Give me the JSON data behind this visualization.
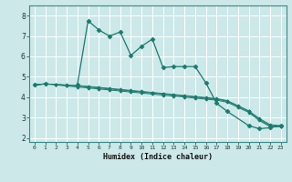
{
  "xlabel": "Humidex (Indice chaleur)",
  "background_color": "#cce8e8",
  "grid_color": "#ffffff",
  "line_color": "#1a7a6e",
  "xlim": [
    -0.5,
    23.5
  ],
  "ylim": [
    1.8,
    8.5
  ],
  "xticks": [
    0,
    1,
    2,
    3,
    4,
    5,
    6,
    7,
    8,
    9,
    10,
    11,
    12,
    13,
    14,
    15,
    16,
    17,
    18,
    19,
    20,
    21,
    22,
    23
  ],
  "yticks": [
    2,
    3,
    4,
    5,
    6,
    7,
    8
  ],
  "series1_x": [
    0,
    1,
    2,
    3,
    4,
    5,
    6,
    7,
    8,
    9,
    10,
    11,
    12,
    13,
    14,
    15,
    16,
    17,
    18,
    20,
    21,
    22,
    23
  ],
  "series1_y": [
    4.6,
    4.65,
    null,
    null,
    4.6,
    7.75,
    7.3,
    7.0,
    7.2,
    6.05,
    6.5,
    6.85,
    5.45,
    5.5,
    5.5,
    5.5,
    4.7,
    3.7,
    3.3,
    2.6,
    2.45,
    2.5,
    2.6
  ],
  "series2_x": [
    0,
    1,
    2,
    3,
    4,
    5,
    6,
    7,
    8,
    9,
    10,
    11,
    12,
    13,
    14,
    15,
    16,
    17,
    18,
    19,
    20,
    21,
    22,
    23
  ],
  "series2_y": [
    4.6,
    4.65,
    4.6,
    4.55,
    4.5,
    4.45,
    4.4,
    4.35,
    4.3,
    4.25,
    4.2,
    4.15,
    4.1,
    4.05,
    4.0,
    3.95,
    3.9,
    3.85,
    3.75,
    3.5,
    3.25,
    2.85,
    2.55,
    2.55
  ],
  "series3_x": [
    0,
    1,
    2,
    3,
    4,
    5,
    6,
    7,
    8,
    9,
    10,
    11,
    12,
    13,
    14,
    15,
    16,
    17,
    18,
    19,
    20,
    21,
    22,
    23
  ],
  "series3_y": [
    4.6,
    4.65,
    4.63,
    4.6,
    4.57,
    4.53,
    4.48,
    4.43,
    4.38,
    4.33,
    4.28,
    4.23,
    4.18,
    4.13,
    4.08,
    4.03,
    3.98,
    3.93,
    3.83,
    3.58,
    3.33,
    2.95,
    2.65,
    2.6
  ],
  "series4_x": [
    0,
    1,
    2,
    3,
    4,
    5,
    6,
    7,
    8,
    9,
    10,
    11,
    12,
    13,
    14,
    15,
    16,
    17,
    18,
    19,
    20,
    21,
    22,
    23
  ],
  "series4_y": [
    4.6,
    4.65,
    4.62,
    4.58,
    4.55,
    4.5,
    4.45,
    4.4,
    4.35,
    4.3,
    4.25,
    4.2,
    4.15,
    4.1,
    4.05,
    4.0,
    3.95,
    3.9,
    3.8,
    3.55,
    3.3,
    2.9,
    2.6,
    2.57
  ]
}
